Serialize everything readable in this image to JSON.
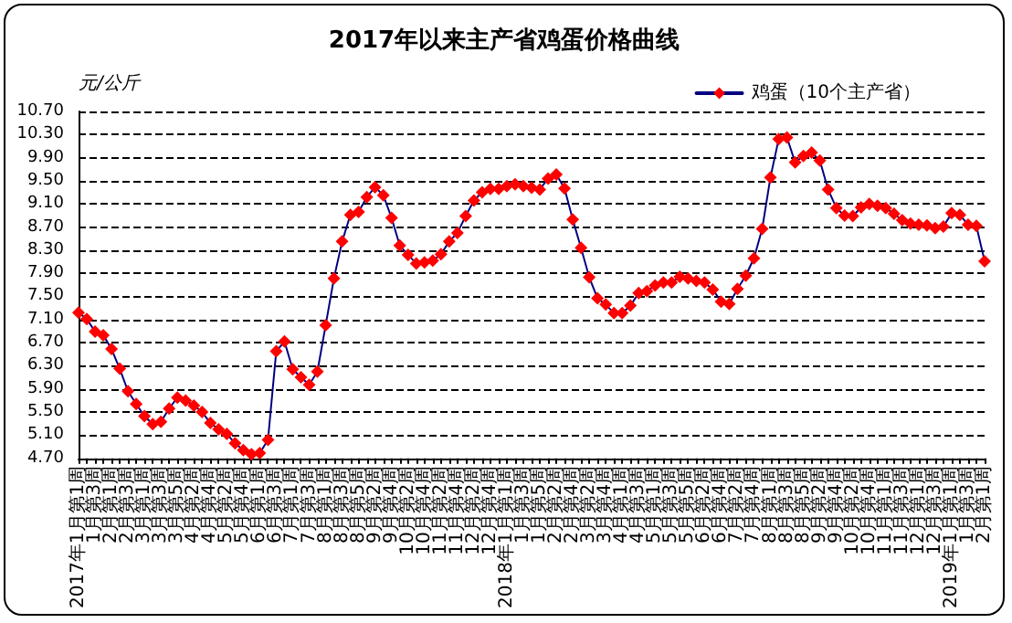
{
  "chart_data": {
    "type": "line",
    "title": "2017年以来主产省鸡蛋价格曲线",
    "ylabel": "元/公斤",
    "categories": [
      "2017年1月第1周",
      null,
      "1月第3周",
      null,
      "2月第1周",
      null,
      "2月第3周",
      null,
      "3月第1周",
      null,
      "3月第3周",
      null,
      "3月第5周",
      null,
      "4月第2周",
      null,
      "4月第4周",
      null,
      "5月第2周",
      null,
      "5月第4周",
      null,
      "6月第1周",
      null,
      "6月第3周",
      null,
      "7月第1周",
      null,
      "7月第3周",
      null,
      "8月第1周",
      null,
      "8月第3周",
      null,
      "8月第5周",
      null,
      "9月第2周",
      null,
      "9月第4周",
      null,
      "10月第2周",
      null,
      "10月第4周",
      null,
      "11月第2周",
      null,
      "11月第4周",
      null,
      "12月第2周",
      null,
      "12月第4周",
      null,
      "2018年1月第1周",
      null,
      "1月第3周",
      null,
      "1月第5周",
      null,
      "2月第2周",
      null,
      "2月第4周",
      null,
      "3月第2周",
      null,
      "3月第4周",
      null,
      "4月第1周",
      null,
      "4月第3周",
      null,
      "5月第1周",
      null,
      "5月第3周",
      null,
      "5月第5周",
      null,
      "6月第2周",
      null,
      "6月第4周",
      null,
      "7月第2周",
      null,
      "7月第4周",
      null,
      "8月第1周",
      null,
      "8月第3周",
      null,
      "8月第5周",
      null,
      "9月第2周",
      null,
      "9月第4周",
      null,
      "10月第2周",
      null,
      "10月第4周",
      null,
      "11月第1周",
      null,
      "11月第3周",
      null,
      "12月第1周",
      null,
      "12月第3周",
      null,
      "2019年1月第1周",
      null,
      "1月第3周",
      null,
      "2月第1周"
    ],
    "series": [
      {
        "name": "鸡蛋（10个主产省）",
        "color": "#ff0000",
        "values": [
          7.22,
          7.11,
          6.89,
          6.83,
          6.59,
          6.25,
          5.86,
          5.64,
          5.43,
          5.29,
          5.33,
          5.56,
          5.75,
          5.7,
          5.61,
          5.5,
          5.31,
          5.2,
          5.12,
          4.96,
          4.84,
          4.77,
          4.79,
          5.02,
          6.55,
          6.72,
          6.24,
          6.1,
          5.97,
          6.2,
          7.0,
          7.81,
          8.45,
          8.91,
          8.96,
          9.22,
          9.39,
          9.25,
          8.86,
          8.38,
          8.22,
          8.07,
          8.09,
          8.12,
          8.23,
          8.45,
          8.6,
          8.89,
          9.16,
          9.3,
          9.36,
          9.36,
          9.41,
          9.44,
          9.41,
          9.38,
          9.35,
          9.54,
          9.61,
          9.37,
          8.83,
          8.34,
          7.83,
          7.47,
          7.36,
          7.21,
          7.21,
          7.34,
          7.56,
          7.59,
          7.69,
          7.74,
          7.74,
          7.84,
          7.81,
          7.77,
          7.74,
          7.62,
          7.41,
          7.37,
          7.63,
          7.86,
          8.16,
          8.67,
          9.56,
          10.22,
          10.25,
          9.82,
          9.93,
          9.99,
          9.85,
          9.35,
          9.03,
          8.9,
          8.89,
          9.04,
          9.1,
          9.07,
          9.03,
          8.93,
          8.82,
          8.76,
          8.74,
          8.73,
          8.68,
          8.71,
          8.94,
          8.91,
          8.74,
          8.72,
          8.11
        ]
      }
    ],
    "ylim": [
      4.7,
      10.7
    ],
    "yticks": [
      {
        "value": 4.7,
        "label": "4.70"
      },
      {
        "value": 5.1,
        "label": "5.10"
      },
      {
        "value": 5.5,
        "label": "5.50"
      },
      {
        "value": 5.9,
        "label": "5.90"
      },
      {
        "value": 6.3,
        "label": "6.30"
      },
      {
        "value": 6.7,
        "label": "6.70"
      },
      {
        "value": 7.1,
        "label": "7.10"
      },
      {
        "value": 7.5,
        "label": "7.50"
      },
      {
        "value": 7.9,
        "label": "7.90"
      },
      {
        "value": 8.3,
        "label": "8.30"
      },
      {
        "value": 8.7,
        "label": "8.70"
      },
      {
        "value": 9.1,
        "label": "9.10"
      },
      {
        "value": 9.5,
        "label": "9.50"
      },
      {
        "value": 9.9,
        "label": "9.90"
      },
      {
        "value": 10.3,
        "label": "10.30"
      },
      {
        "value": 10.7,
        "label": "10.70"
      }
    ],
    "grid": "y",
    "legend": "top right",
    "marker": "diamond",
    "line_style": "solid"
  }
}
